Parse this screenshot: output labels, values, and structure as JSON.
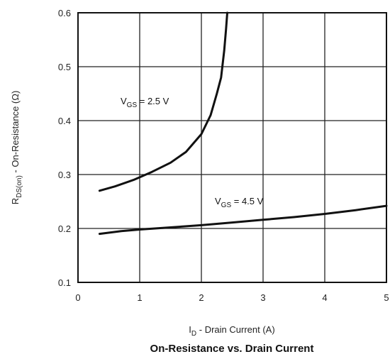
{
  "chart_data": {
    "type": "line",
    "title": "On-Resistance vs. Drain Current",
    "xlabel": {
      "main": "I",
      "sub": "D",
      "rest": " - Drain Current (A)"
    },
    "ylabel": {
      "main": "R",
      "sub": "DS(on)",
      "rest": " - On-Resistance (Ω)"
    },
    "xlim": [
      0,
      5
    ],
    "ylim": [
      0.1,
      0.6
    ],
    "x_ticks": [
      0,
      1,
      2,
      3,
      4,
      5
    ],
    "x_tick_labels": [
      "0",
      "1",
      "2",
      "3",
      "4",
      "5"
    ],
    "y_ticks": [
      0.1,
      0.2,
      0.3,
      0.4,
      0.5,
      0.6
    ],
    "y_tick_labels": [
      "0.1",
      "0.2",
      "0.3",
      "0.4",
      "0.5",
      "0.6"
    ],
    "grid": true,
    "series": [
      {
        "label": {
          "main": "V",
          "sub": "GS",
          "rest": " = 2.5 V"
        },
        "x": [
          0.35,
          0.6,
          0.9,
          1.2,
          1.5,
          1.75,
          2.0,
          2.15,
          2.25,
          2.32,
          2.37,
          2.4,
          2.42
        ],
        "y": [
          0.27,
          0.278,
          0.29,
          0.305,
          0.322,
          0.342,
          0.375,
          0.41,
          0.45,
          0.48,
          0.53,
          0.57,
          0.6
        ]
      },
      {
        "label": {
          "main": "V",
          "sub": "GS",
          "rest": " = 4.5 V"
        },
        "x": [
          0.35,
          0.7,
          1.0,
          1.5,
          2.0,
          2.5,
          3.0,
          3.5,
          4.0,
          4.5,
          5.0
        ],
        "y": [
          0.19,
          0.195,
          0.198,
          0.202,
          0.206,
          0.211,
          0.216,
          0.221,
          0.227,
          0.234,
          0.242
        ]
      }
    ]
  },
  "colors": {
    "line": "#111111",
    "grid": "#222222",
    "frame": "#111111"
  }
}
